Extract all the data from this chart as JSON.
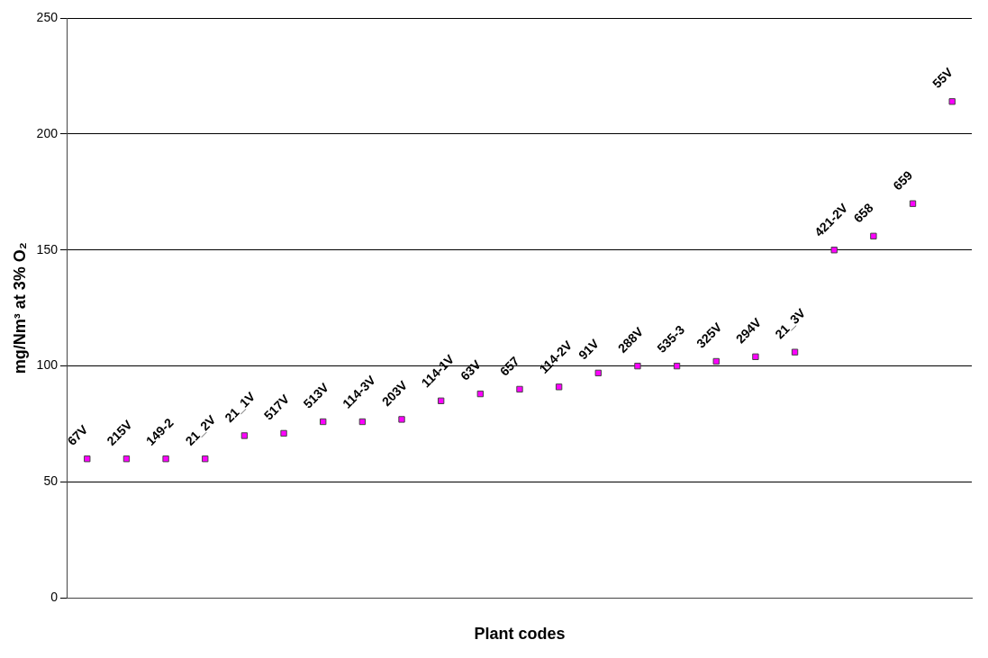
{
  "chart_data": {
    "type": "scatter",
    "xlabel": "Plant codes",
    "ylabel": "mg/Nm³ at 3% O₂",
    "categories": [
      "67V",
      "215V",
      "149-2",
      "21_2V",
      "21_1V",
      "517V",
      "513V",
      "114-3V",
      "203V",
      "114-1V",
      "63V",
      "657",
      "114-2V",
      "91V",
      "288V",
      "535-3",
      "325V",
      "294V",
      "21_3V",
      "421-2V",
      "658",
      "659",
      "55V"
    ],
    "series": [
      {
        "color": "#ff00ff",
        "values": [
          60,
          60,
          60,
          60,
          70,
          71,
          76,
          76,
          77,
          85,
          88,
          90,
          91,
          97,
          100,
          100,
          102,
          104,
          106,
          150,
          156,
          170,
          214
        ]
      }
    ],
    "ylim": [
      0,
      250
    ],
    "yticks": [
      0,
      50,
      100,
      150,
      200,
      250
    ],
    "grid": "y",
    "marker": "square",
    "legend": false,
    "tick_labels": "y"
  }
}
